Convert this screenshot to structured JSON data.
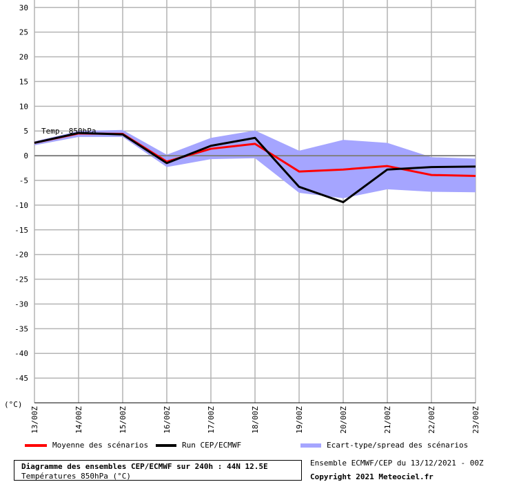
{
  "chart_data": {
    "type": "line",
    "unit_label": "(°C)",
    "series_label": "Temp. 850hPa",
    "x": [
      "13/00Z",
      "14/00Z",
      "15/00Z",
      "16/00Z",
      "17/00Z",
      "18/00Z",
      "19/00Z",
      "20/00Z",
      "21/00Z",
      "22/00Z",
      "23/00Z"
    ],
    "y_ticks": [
      30,
      25,
      20,
      15,
      10,
      5,
      0,
      -5,
      -10,
      -15,
      -20,
      -25,
      -30,
      -35,
      -40,
      -45
    ],
    "ylim": [
      -50,
      31.5
    ],
    "grid": true,
    "series": [
      {
        "name": "Moyenne des scénarios",
        "color": "#ff0000",
        "values": [
          2.6,
          4.5,
          4.4,
          -1.2,
          1.4,
          2.4,
          -3.2,
          -2.8,
          -2.1,
          -3.9,
          -4.1
        ]
      },
      {
        "name": "Run CEP/ECMWF",
        "color": "#000000",
        "values": [
          2.6,
          4.6,
          4.3,
          -1.5,
          2.0,
          3.6,
          -6.3,
          -9.4,
          -2.8,
          -2.3,
          -2.2
        ]
      },
      {
        "name": "Ecart-type/spread des scénarios",
        "color": "#a5a5ff",
        "type": "band",
        "upper": [
          2.9,
          5.0,
          5.2,
          0.2,
          3.6,
          5.1,
          1.0,
          3.2,
          2.6,
          -0.3,
          -0.6
        ],
        "lower": [
          2.1,
          3.8,
          3.8,
          -2.3,
          -0.7,
          -0.5,
          -7.5,
          -8.6,
          -6.8,
          -7.3,
          -7.4
        ]
      }
    ]
  },
  "legend": {
    "mean": "Moyenne des scénarios",
    "run": "Run CEP/ECMWF",
    "spread": "Ecart-type/spread des scénarios"
  },
  "footer": {
    "title": "Diagramme des ensembles CEP/ECMWF sur 240h : 44N 12.5E",
    "subtitle": "Températures 850hPa (°C)",
    "ensemble": "Ensemble ECMWF/CEP du 13/12/2021 - 00Z",
    "copyright": "Copyright 2021 Meteociel.fr"
  },
  "colors": {
    "grid": "#b4b4b4",
    "zero": "#808080",
    "mean": "#ff0000",
    "run": "#000000",
    "spread": "#a5a5ff"
  }
}
